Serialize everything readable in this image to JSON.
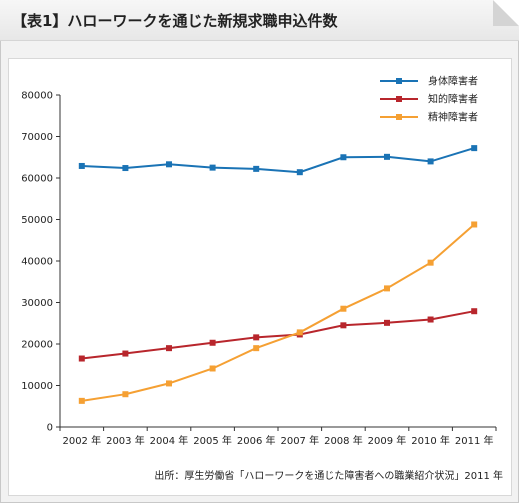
{
  "header": {
    "title": "【表1】ハローワークを通じた新規求職申込件数"
  },
  "source": "出所：厚生労働省「ハローワークを通じた障害者への職業紹介状況」2011 年",
  "chart_data": {
    "type": "line",
    "title": "",
    "xlabel": "",
    "ylabel": "",
    "categories": [
      "2002 年",
      "2003 年",
      "2004 年",
      "2005 年",
      "2006 年",
      "2007 年",
      "2008 年",
      "2009 年",
      "2010 年",
      "2011 年"
    ],
    "ylim": [
      0,
      80000
    ],
    "yticks": [
      0,
      10000,
      20000,
      30000,
      40000,
      50000,
      60000,
      70000,
      80000
    ],
    "grid": false,
    "legend_position": "top-right",
    "series": [
      {
        "name": "身体障害者",
        "color": "#1a73b5",
        "values": [
          62900,
          62400,
          63300,
          62500,
          62200,
          61400,
          65000,
          65100,
          64000,
          67200
        ]
      },
      {
        "name": "知的障害者",
        "color": "#b8262c",
        "values": [
          16500,
          17700,
          19000,
          20300,
          21600,
          22300,
          24500,
          25100,
          25900,
          27900
        ]
      },
      {
        "name": "精神障害者",
        "color": "#f5a033",
        "values": [
          6300,
          7900,
          10500,
          14100,
          19000,
          22800,
          28500,
          33400,
          39600,
          48800
        ]
      }
    ]
  }
}
